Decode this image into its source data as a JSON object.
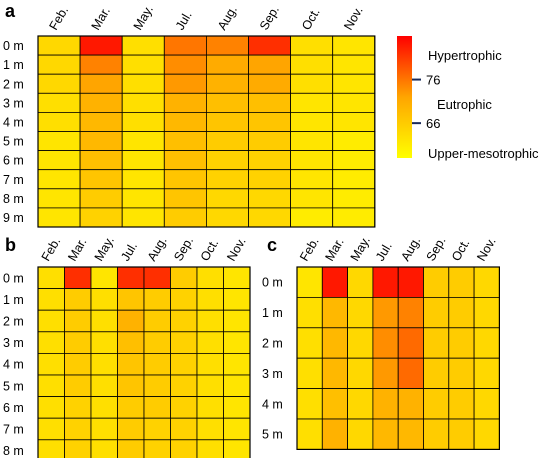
{
  "chart_data": [
    {
      "type": "heatmap",
      "panel_label": "a",
      "categories": [
        "Feb.",
        "Mar.",
        "May.",
        "Jul.",
        "Aug.",
        "Sep.",
        "Oct.",
        "Nov."
      ],
      "depths": [
        "0 m",
        "1 m",
        "2 m",
        "3 m",
        "4 m",
        "5 m",
        "6 m",
        "7 m",
        "8 m",
        "9 m"
      ],
      "values": [
        [
          64,
          84,
          63,
          76,
          75,
          82,
          63,
          62
        ],
        [
          64,
          75,
          63,
          74,
          71,
          72,
          63,
          62
        ],
        [
          64,
          72,
          63,
          73,
          70,
          71,
          63,
          62
        ],
        [
          63,
          70,
          63,
          70,
          68,
          68,
          62,
          62
        ],
        [
          63,
          69,
          63,
          69,
          67,
          67,
          62,
          62
        ],
        [
          62,
          69,
          62,
          68,
          66,
          66,
          62,
          61
        ],
        [
          62,
          68,
          62,
          68,
          65,
          65,
          62,
          61
        ],
        [
          62,
          67,
          62,
          67,
          65,
          65,
          62,
          61
        ],
        [
          62,
          66,
          62,
          67,
          64,
          64,
          62,
          61
        ],
        [
          62,
          65,
          62,
          66,
          64,
          64,
          61,
          61
        ]
      ]
    },
    {
      "type": "heatmap",
      "panel_label": "b",
      "categories": [
        "Feb.",
        "Mar.",
        "May.",
        "Jul.",
        "Aug.",
        "Sep.",
        "Oct.",
        "Nov."
      ],
      "depths": [
        "0 m",
        "1 m",
        "2 m",
        "3 m",
        "4 m",
        "5 m",
        "6 m",
        "7 m",
        "8 m"
      ],
      "values": [
        [
          63,
          82,
          62,
          82,
          82,
          66,
          63,
          62
        ],
        [
          63,
          66,
          63,
          67,
          66,
          65,
          63,
          62
        ],
        [
          63,
          66,
          63,
          70,
          66,
          65,
          63,
          62
        ],
        [
          63,
          66,
          63,
          68,
          66,
          65,
          63,
          62
        ],
        [
          63,
          66,
          63,
          67,
          66,
          65,
          63,
          62
        ],
        [
          63,
          66,
          63,
          67,
          66,
          65,
          63,
          62
        ],
        [
          63,
          65,
          63,
          66,
          66,
          65,
          63,
          62
        ],
        [
          63,
          65,
          63,
          66,
          65,
          65,
          63,
          62
        ],
        [
          63,
          65,
          63,
          66,
          65,
          65,
          63,
          62
        ]
      ]
    },
    {
      "type": "heatmap",
      "panel_label": "c",
      "categories": [
        "Feb.",
        "Mar.",
        "May.",
        "Jul.",
        "Aug.",
        "Sep.",
        "Oct.",
        "Nov."
      ],
      "depths": [
        "0 m",
        "1 m",
        "2 m",
        "3 m",
        "4 m",
        "5 m"
      ],
      "values": [
        [
          62,
          84,
          64,
          84,
          84,
          66,
          66,
          64
        ],
        [
          63,
          69,
          64,
          73,
          75,
          66,
          66,
          64
        ],
        [
          63,
          69,
          64,
          74,
          77,
          66,
          66,
          64
        ],
        [
          63,
          69,
          64,
          73,
          77,
          66,
          66,
          64
        ],
        [
          63,
          68,
          64,
          70,
          70,
          66,
          66,
          64
        ],
        [
          63,
          70,
          64,
          69,
          69,
          66,
          66,
          64
        ]
      ]
    }
  ],
  "legend": {
    "ticks": [
      {
        "label": "76",
        "value": 76
      },
      {
        "label": "66",
        "value": 66
      }
    ],
    "classes": [
      "Hypertrophic",
      "Eutrophic",
      "Upper-mesotrophic"
    ],
    "min": 58,
    "max": 86
  },
  "colors": {
    "low": "#ffff00",
    "mid": "#ffa500",
    "high": "#ff0000",
    "grid": "#000000"
  }
}
